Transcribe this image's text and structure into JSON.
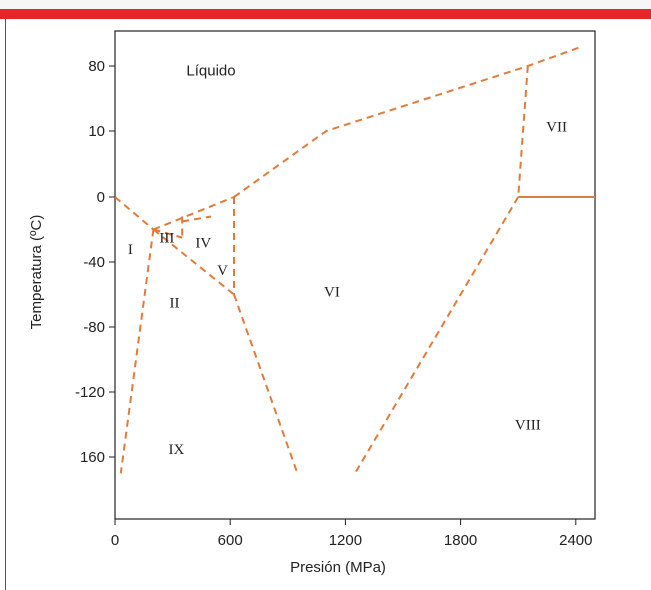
{
  "colors": {
    "header_bar": "#e5242c",
    "phase_lines": "#e07b3a",
    "axis": "#222222"
  },
  "chart_data": {
    "type": "line",
    "title": "",
    "xlabel": "Presión (MPa)",
    "ylabel": "Temperatura (ºC)",
    "xlim": [
      0,
      2500
    ],
    "x_ticks": [
      "0",
      "600",
      "1200",
      "1800",
      "2400"
    ],
    "x_tick_values": [
      0,
      600,
      1200,
      1800,
      2400
    ],
    "y_ticks": [
      "80",
      "10",
      "0",
      "-40",
      "-80",
      "-120",
      "160"
    ],
    "y_tick_positions_index": [
      0,
      1,
      2,
      3,
      4,
      5,
      6
    ],
    "grid": false,
    "line_style": "dashed",
    "series": [
      {
        "points": [
          [
            0,
            0
          ],
          [
            200,
            -20
          ]
        ]
      },
      {
        "points": [
          [
            200,
            -20
          ],
          [
            30,
            -170
          ]
        ]
      },
      {
        "points": [
          [
            200,
            -20
          ],
          [
            620,
            0
          ]
        ]
      },
      {
        "points": [
          [
            200,
            -20
          ],
          [
            350,
            -25
          ]
        ]
      },
      {
        "points": [
          [
            200,
            -20
          ],
          [
            620,
            -60
          ]
        ]
      },
      {
        "points": [
          [
            350,
            -15
          ],
          [
            500,
            -12
          ]
        ]
      },
      {
        "points": [
          [
            350,
            -12
          ],
          [
            350,
            -25
          ]
        ]
      },
      {
        "points": [
          [
            620,
            0
          ],
          [
            620,
            -60
          ]
        ]
      },
      {
        "points": [
          [
            620,
            -60
          ],
          [
            950,
            -170
          ]
        ]
      },
      {
        "points": [
          [
            620,
            0
          ],
          [
            1100,
            10
          ],
          [
            2150,
            80
          ],
          [
            2420,
            100
          ]
        ]
      },
      {
        "points": [
          [
            2150,
            80
          ],
          [
            2100,
            0
          ]
        ]
      },
      {
        "points": [
          [
            2100,
            0
          ],
          [
            1250,
            -170
          ]
        ]
      },
      {
        "points": [
          [
            2100,
            0
          ],
          [
            2500,
            0
          ]
        ],
        "solid": true
      }
    ],
    "region_labels": [
      {
        "text": "Líquido",
        "x": 500,
        "y": 75
      },
      {
        "text": "I",
        "x": 80,
        "y": -32
      },
      {
        "text": "III",
        "x": 270,
        "y": -25
      },
      {
        "text": "IV",
        "x": 460,
        "y": -28
      },
      {
        "text": "V",
        "x": 560,
        "y": -45
      },
      {
        "text": "II",
        "x": 310,
        "y": -65
      },
      {
        "text": "VI",
        "x": 1130,
        "y": -58
      },
      {
        "text": "VII",
        "x": 2300,
        "y": 15
      },
      {
        "text": "VIII",
        "x": 2150,
        "y": -140
      },
      {
        "text": "IX",
        "x": 320,
        "y": -155
      }
    ]
  }
}
